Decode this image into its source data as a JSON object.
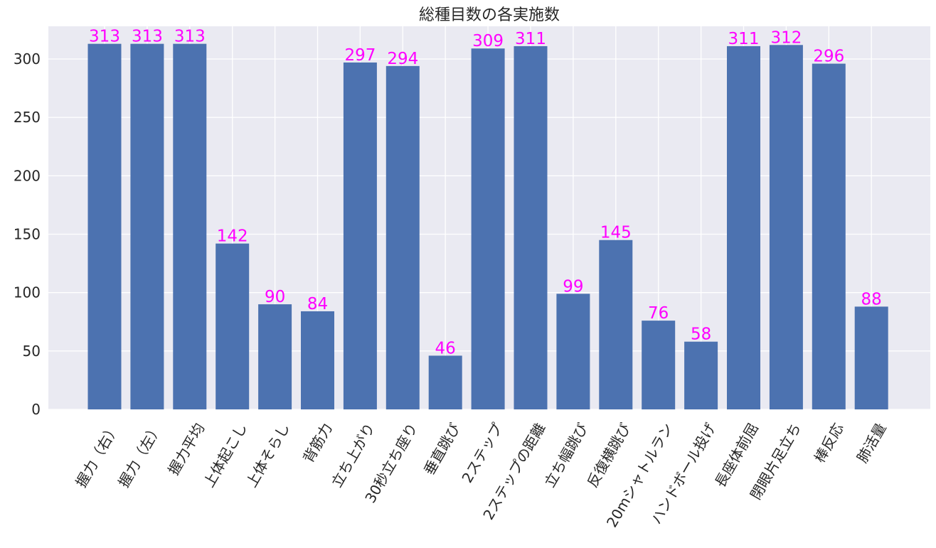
{
  "chart_data": {
    "type": "bar",
    "title": "総種目数の各実施数",
    "xlabel": "",
    "ylabel": "",
    "categories": [
      "握力（右）",
      "握力（左）",
      "握力平均",
      "上体起こし",
      "上体そらし",
      "背筋力",
      "立ち上がり",
      "30秒立ち座り",
      "垂直跳び",
      "2ステップ",
      "2ステップの距離",
      "立ち幅跳び",
      "反復横跳び",
      "20mシャトルラン",
      "ハンドボール投げ",
      "長座体前屈",
      "閉眼片足立ち",
      "棒反応",
      "肺活量"
    ],
    "values": [
      313,
      313,
      313,
      142,
      90,
      84,
      297,
      294,
      46,
      309,
      311,
      99,
      145,
      76,
      58,
      311,
      312,
      296,
      88
    ],
    "data_labels": [
      "313",
      "313",
      "313",
      "142",
      "90",
      "84",
      "297",
      "294",
      "46",
      "309",
      "311",
      "99",
      "145",
      "76",
      "58",
      "311",
      "312",
      "296",
      "88"
    ],
    "ylim": [
      0,
      328
    ],
    "yticks": [
      0,
      50,
      100,
      150,
      200,
      250,
      300
    ],
    "ytick_labels": [
      "0",
      "50",
      "100",
      "150",
      "200",
      "250",
      "300"
    ],
    "grid": true,
    "legend": "none",
    "colors": {
      "bar": "#4c72b0",
      "data_label": "#ff00ff",
      "plot_background": "#eaeaf2",
      "grid": "#ffffff",
      "text": "#262626"
    }
  }
}
